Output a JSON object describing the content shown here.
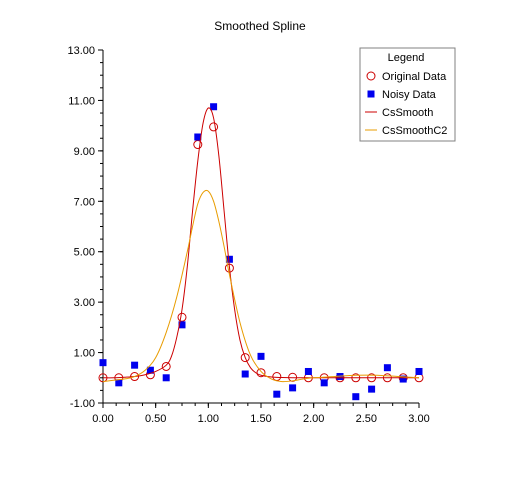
{
  "chart_data": {
    "type": "line",
    "title": "Smoothed Spline",
    "xlabel": "",
    "ylabel": "",
    "xlim": [
      0.0,
      3.0
    ],
    "ylim": [
      -1.0,
      13.0
    ],
    "x_ticks": [
      "0.00",
      "0.50",
      "1.00",
      "1.50",
      "2.00",
      "2.50",
      "3.00"
    ],
    "y_ticks": [
      "-1.00",
      "1.00",
      "3.00",
      "5.00",
      "7.00",
      "9.00",
      "11.00",
      "13.00"
    ],
    "grid": false,
    "legend": {
      "title": "Legend",
      "position": "top-right",
      "entries": [
        "Original Data",
        "Noisy Data",
        "CsSmooth",
        "CsSmoothC2"
      ]
    },
    "series": [
      {
        "name": "Original Data",
        "kind": "scatter",
        "marker": "circle-open",
        "color": "#cc0000",
        "x": [
          0.0,
          0.15,
          0.3,
          0.45,
          0.6,
          0.75,
          0.9,
          1.05,
          1.2,
          1.35,
          1.5,
          1.65,
          1.8,
          1.95,
          2.1,
          2.25,
          2.4,
          2.55,
          2.7,
          2.85,
          3.0
        ],
        "y": [
          0.0,
          0.0,
          0.05,
          0.12,
          0.45,
          2.4,
          9.25,
          9.95,
          4.35,
          0.8,
          0.2,
          0.05,
          0.02,
          0.0,
          0.0,
          0.0,
          0.0,
          0.0,
          0.0,
          0.0,
          0.0
        ]
      },
      {
        "name": "Noisy Data",
        "kind": "scatter",
        "marker": "square-filled",
        "color": "#0000ee",
        "x": [
          0.0,
          0.15,
          0.3,
          0.45,
          0.6,
          0.75,
          0.9,
          1.05,
          1.2,
          1.35,
          1.5,
          1.65,
          1.8,
          1.95,
          2.1,
          2.25,
          2.4,
          2.55,
          2.7,
          2.85,
          3.0
        ],
        "y": [
          0.6,
          -0.2,
          0.5,
          0.3,
          0.0,
          2.1,
          9.55,
          10.75,
          4.7,
          0.15,
          0.85,
          -0.65,
          -0.4,
          0.25,
          -0.2,
          0.05,
          -0.75,
          -0.45,
          0.4,
          -0.05,
          0.25
        ]
      },
      {
        "name": "CsSmooth",
        "kind": "line",
        "color": "#cc0000",
        "x": [
          0.0,
          0.1,
          0.2,
          0.3,
          0.4,
          0.5,
          0.6,
          0.65,
          0.7,
          0.75,
          0.8,
          0.85,
          0.9,
          0.95,
          1.0,
          1.05,
          1.1,
          1.15,
          1.2,
          1.25,
          1.3,
          1.35,
          1.4,
          1.45,
          1.5,
          1.6,
          1.7,
          1.8,
          1.9,
          2.0,
          2.2,
          2.4,
          2.6,
          2.8,
          3.0
        ],
        "y": [
          0.0,
          0.0,
          0.02,
          0.05,
          0.12,
          0.25,
          0.5,
          0.85,
          1.6,
          2.7,
          4.4,
          6.6,
          8.6,
          10.1,
          10.7,
          10.3,
          8.8,
          6.6,
          4.4,
          2.7,
          1.5,
          0.8,
          0.4,
          0.2,
          0.1,
          0.03,
          0.01,
          0.0,
          0.0,
          0.0,
          0.0,
          0.0,
          0.0,
          0.0,
          0.0
        ]
      },
      {
        "name": "CsSmoothC2",
        "kind": "line",
        "color": "#e89c00",
        "x": [
          0.0,
          0.1,
          0.2,
          0.3,
          0.4,
          0.5,
          0.6,
          0.7,
          0.8,
          0.85,
          0.9,
          0.95,
          1.0,
          1.05,
          1.1,
          1.15,
          1.2,
          1.3,
          1.4,
          1.5,
          1.6,
          1.7,
          1.8,
          1.9,
          2.0,
          2.2,
          2.4,
          2.6,
          2.8,
          3.0
        ],
        "y": [
          -0.15,
          -0.1,
          -0.05,
          0.05,
          0.3,
          0.8,
          1.8,
          3.2,
          5.0,
          6.0,
          6.9,
          7.35,
          7.4,
          7.0,
          6.2,
          5.2,
          4.1,
          2.2,
          0.9,
          0.25,
          -0.05,
          -0.15,
          -0.12,
          -0.05,
          0.0,
          0.05,
          0.1,
          0.1,
          0.05,
          0.0
        ]
      }
    ]
  }
}
